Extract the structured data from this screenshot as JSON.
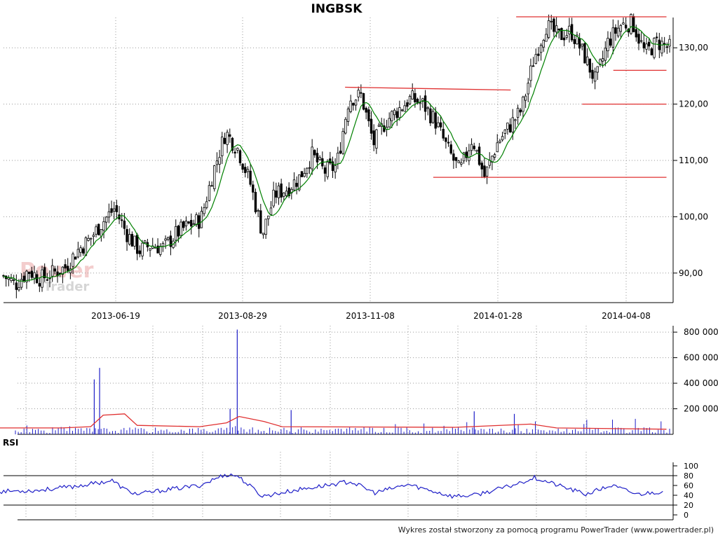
{
  "title": "INGBSK",
  "footer": "Wykres został stworzony za pomocą programu PowerTrader (www.powertrader.pl)",
  "watermark": {
    "line1": "Power",
    "line2": "Trader"
  },
  "rsi_label": "RSI",
  "colors": {
    "candle": "#000000",
    "moving_average": "#008000",
    "trendline": "#e03030",
    "volume_bar": "#1f1fc8",
    "volume_average": "#e03030",
    "rsi_line": "#1f1fc8",
    "grid": "#999999"
  },
  "chart_data": [
    {
      "type": "candlestick",
      "title": "INGBSK",
      "xlabel": "",
      "ylabel": "",
      "ylim": [
        85,
        136
      ],
      "y_ticks": [
        "90,00",
        "100,00",
        "110,00",
        "120,00",
        "130,00"
      ],
      "x_ticks": [
        "2013-06-19",
        "2013-08-29",
        "2013-11-08",
        "2014-01-28",
        "2014-04-08"
      ],
      "grid": true,
      "close_series": [
        {
          "x": "2013-04-15",
          "close": 89.5
        },
        {
          "x": "2013-04-22",
          "close": 88.0
        },
        {
          "x": "2013-04-29",
          "close": 90.5
        },
        {
          "x": "2013-05-06",
          "close": 89.0
        },
        {
          "x": "2013-05-13",
          "close": 90.0
        },
        {
          "x": "2013-05-20",
          "close": 91.0
        },
        {
          "x": "2013-05-27",
          "close": 94.0
        },
        {
          "x": "2013-06-03",
          "close": 96.0
        },
        {
          "x": "2013-06-10",
          "close": 99.0
        },
        {
          "x": "2013-06-17",
          "close": 101.5
        },
        {
          "x": "2013-06-24",
          "close": 97.0
        },
        {
          "x": "2013-07-01",
          "close": 94.0
        },
        {
          "x": "2013-07-08",
          "close": 95.0
        },
        {
          "x": "2013-07-15",
          "close": 94.5
        },
        {
          "x": "2013-07-22",
          "close": 97.0
        },
        {
          "x": "2013-07-29",
          "close": 98.5
        },
        {
          "x": "2013-08-05",
          "close": 99.5
        },
        {
          "x": "2013-08-12",
          "close": 108.0
        },
        {
          "x": "2013-08-19",
          "close": 115.0
        },
        {
          "x": "2013-08-26",
          "close": 112.0
        },
        {
          "x": "2013-09-02",
          "close": 106.0
        },
        {
          "x": "2013-09-09",
          "close": 97.0
        },
        {
          "x": "2013-09-16",
          "close": 104.0
        },
        {
          "x": "2013-09-23",
          "close": 105.0
        },
        {
          "x": "2013-09-30",
          "close": 107.0
        },
        {
          "x": "2013-10-07",
          "close": 111.0
        },
        {
          "x": "2013-10-14",
          "close": 108.0
        },
        {
          "x": "2013-10-21",
          "close": 109.0
        },
        {
          "x": "2013-10-28",
          "close": 121.0
        },
        {
          "x": "2013-11-04",
          "close": 121.5
        },
        {
          "x": "2013-11-11",
          "close": 113.0
        },
        {
          "x": "2013-11-18",
          "close": 117.0
        },
        {
          "x": "2013-11-25",
          "close": 119.0
        },
        {
          "x": "2013-12-02",
          "close": 121.0
        },
        {
          "x": "2013-12-09",
          "close": 120.0
        },
        {
          "x": "2013-12-16",
          "close": 117.0
        },
        {
          "x": "2013-12-23",
          "close": 112.0
        },
        {
          "x": "2013-12-30",
          "close": 108.0
        },
        {
          "x": "2014-01-06",
          "close": 114.0
        },
        {
          "x": "2014-01-13",
          "close": 107.0
        },
        {
          "x": "2014-01-20",
          "close": 113.0
        },
        {
          "x": "2014-01-27",
          "close": 116.0
        },
        {
          "x": "2014-02-03",
          "close": 119.0
        },
        {
          "x": "2014-02-10",
          "close": 128.0
        },
        {
          "x": "2014-02-17",
          "close": 134.0
        },
        {
          "x": "2014-02-24",
          "close": 132.0
        },
        {
          "x": "2014-03-03",
          "close": 133.0
        },
        {
          "x": "2014-03-10",
          "close": 129.0
        },
        {
          "x": "2014-03-17",
          "close": 124.0
        },
        {
          "x": "2014-03-24",
          "close": 131.0
        },
        {
          "x": "2014-03-31",
          "close": 134.0
        },
        {
          "x": "2014-04-07",
          "close": 134.5
        },
        {
          "x": "2014-04-14",
          "close": 129.0
        },
        {
          "x": "2014-04-21",
          "close": 131.0
        },
        {
          "x": "2014-04-28",
          "close": 130.0
        }
      ],
      "trendlines": [
        {
          "from": {
            "x": "2013-10-25",
            "y": 123.0
          },
          "to": {
            "x": "2014-02-04",
            "y": 122.5
          }
        },
        {
          "from": {
            "x": "2013-12-18",
            "y": 107.0
          },
          "to": {
            "x": "2014-04-30",
            "y": 107.0
          }
        },
        {
          "from": {
            "x": "2014-02-07",
            "y": 135.5
          },
          "to": {
            "x": "2014-04-30",
            "y": 135.5
          }
        },
        {
          "from": {
            "x": "2014-03-15",
            "y": 120.0
          },
          "to": {
            "x": "2014-04-30",
            "y": 120.0
          }
        },
        {
          "from": {
            "x": "2014-04-01",
            "y": 126.0
          },
          "to": {
            "x": "2014-04-30",
            "y": 126.0
          }
        }
      ]
    },
    {
      "type": "bar",
      "title": "",
      "y_ticks": [
        "200 000",
        "400 000",
        "600 000",
        "800 000"
      ],
      "ylim": [
        0,
        850000
      ],
      "grid": true,
      "volume_spikes": [
        {
          "x": "2013-06-10",
          "volume": 520000
        },
        {
          "x": "2013-06-07",
          "volume": 430000
        },
        {
          "x": "2013-08-26",
          "volume": 820000
        },
        {
          "x": "2013-08-22",
          "volume": 200000
        },
        {
          "x": "2013-09-25",
          "volume": 190000
        },
        {
          "x": "2014-01-13",
          "volume": 180000
        },
        {
          "x": "2014-02-06",
          "volume": 160000
        }
      ],
      "average": [
        {
          "x": "2013-04-15",
          "y": 50000
        },
        {
          "x": "2013-05-20",
          "y": 50000
        },
        {
          "x": "2013-06-05",
          "y": 60000
        },
        {
          "x": "2013-06-12",
          "y": 150000
        },
        {
          "x": "2013-06-24",
          "y": 160000
        },
        {
          "x": "2013-07-01",
          "y": 70000
        },
        {
          "x": "2013-08-05",
          "y": 60000
        },
        {
          "x": "2013-08-20",
          "y": 90000
        },
        {
          "x": "2013-08-27",
          "y": 140000
        },
        {
          "x": "2013-09-10",
          "y": 100000
        },
        {
          "x": "2013-09-20",
          "y": 60000
        },
        {
          "x": "2014-01-01",
          "y": 55000
        },
        {
          "x": "2014-02-15",
          "y": 80000
        },
        {
          "x": "2014-03-01",
          "y": 50000
        },
        {
          "x": "2014-04-30",
          "y": 40000
        }
      ]
    },
    {
      "type": "line",
      "title": "RSI",
      "ylim": [
        0,
        100
      ],
      "y_ticks": [
        "0",
        "20",
        "40",
        "60",
        "80",
        "100"
      ],
      "reference_levels": [
        20,
        80
      ],
      "series": [
        {
          "values": [
            {
              "x": "2013-04-15",
              "y": 48
            },
            {
              "x": "2013-05-06",
              "y": 50
            },
            {
              "x": "2013-05-27",
              "y": 58
            },
            {
              "x": "2013-06-17",
              "y": 70
            },
            {
              "x": "2013-06-24",
              "y": 52
            },
            {
              "x": "2013-07-01",
              "y": 42
            },
            {
              "x": "2013-07-15",
              "y": 50
            },
            {
              "x": "2013-08-05",
              "y": 60
            },
            {
              "x": "2013-08-19",
              "y": 82
            },
            {
              "x": "2013-08-26",
              "y": 80
            },
            {
              "x": "2013-09-09",
              "y": 38
            },
            {
              "x": "2013-09-30",
              "y": 52
            },
            {
              "x": "2013-10-28",
              "y": 68
            },
            {
              "x": "2013-11-11",
              "y": 45
            },
            {
              "x": "2013-12-02",
              "y": 62
            },
            {
              "x": "2013-12-30",
              "y": 38
            },
            {
              "x": "2014-01-13",
              "y": 40
            },
            {
              "x": "2014-02-03",
              "y": 58
            },
            {
              "x": "2014-02-17",
              "y": 76
            },
            {
              "x": "2014-03-17",
              "y": 42
            },
            {
              "x": "2014-03-31",
              "y": 60
            },
            {
              "x": "2014-04-14",
              "y": 42
            },
            {
              "x": "2014-04-28",
              "y": 48
            }
          ]
        }
      ]
    }
  ]
}
